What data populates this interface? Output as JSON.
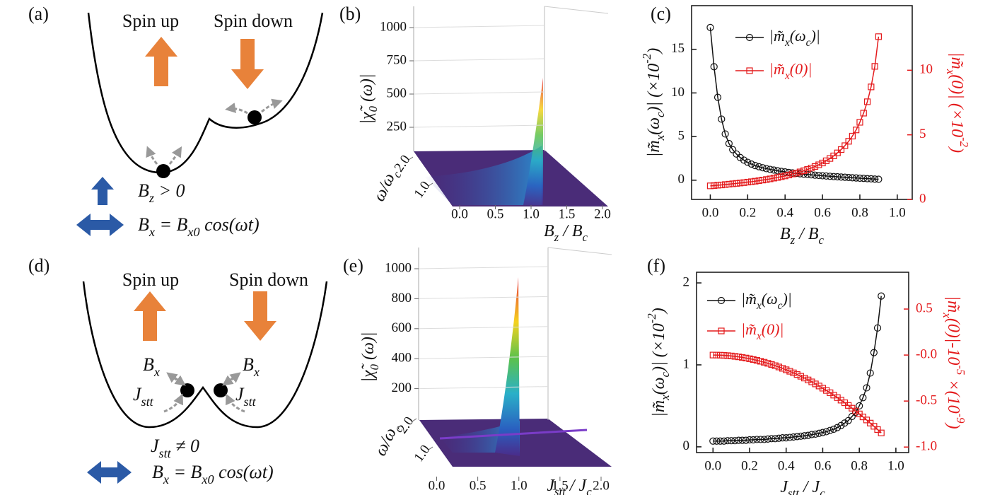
{
  "panels": {
    "a": {
      "label": "(a)",
      "spin_up": "Spin up",
      "spin_down": "Spin down",
      "field_z": [
        {
          "text": "B"
        },
        {
          "text": "z",
          "shift": "sub"
        },
        {
          "text": " > 0"
        }
      ],
      "field_x": [
        {
          "text": "B"
        },
        {
          "text": "x",
          "shift": "sub"
        },
        {
          "text": " = B"
        },
        {
          "text": "x0",
          "shift": "sub"
        },
        {
          "text": " cos(ωt)"
        }
      ]
    },
    "b": {
      "label": "(b)",
      "zlabel": [
        {
          "text": "|χ̃"
        },
        {
          "text": "0",
          "shift": "sub"
        },
        {
          "text": " (ω)|"
        }
      ],
      "ylabel": [
        {
          "text": "ω/ω"
        },
        {
          "text": "c",
          "shift": "sub"
        }
      ],
      "xlabel": [
        {
          "text": "B"
        },
        {
          "text": "z",
          "shift": "sub"
        },
        {
          "text": " / B"
        },
        {
          "text": "c",
          "shift": "sub"
        }
      ],
      "zlim": [
        0,
        1000
      ],
      "zticks": [
        250,
        500,
        750,
        1000
      ],
      "xlim": [
        0,
        2
      ],
      "xticks": [
        {
          "value": 0,
          "label": "0.0"
        },
        0.5,
        {
          "value": 1,
          "label": "1.0"
        },
        1.5,
        {
          "value": 2,
          "label": "2.0"
        }
      ],
      "ylim": [
        0,
        2
      ],
      "yticks": [
        {
          "value": 1,
          "label": "1.0"
        },
        {
          "value": 2,
          "label": "2.0"
        }
      ]
    },
    "d": {
      "label": "(d)",
      "spin_up": "Spin up",
      "spin_down": "Spin down",
      "bx_left": [
        {
          "text": "B"
        },
        {
          "text": "x",
          "shift": "sub"
        }
      ],
      "bx_right": [
        {
          "text": "B"
        },
        {
          "text": "x",
          "shift": "sub"
        }
      ],
      "jstt_left": [
        {
          "text": "J"
        },
        {
          "text": "stt",
          "shift": "sub"
        }
      ],
      "jstt_right": [
        {
          "text": "J"
        },
        {
          "text": "stt",
          "shift": "sub"
        }
      ],
      "condition": [
        {
          "text": "J"
        },
        {
          "text": "stt",
          "shift": "sub"
        },
        {
          "text": " ≠ 0"
        }
      ],
      "field_x": [
        {
          "text": "B"
        },
        {
          "text": "x",
          "shift": "sub"
        },
        {
          "text": " = B"
        },
        {
          "text": "x0",
          "shift": "sub"
        },
        {
          "text": " cos(ωt)"
        }
      ]
    },
    "e": {
      "label": "(e)",
      "zlabel": [
        {
          "text": "|χ̃"
        },
        {
          "text": "0",
          "shift": "sub"
        },
        {
          "text": " (ω)|"
        }
      ],
      "ylabel": [
        {
          "text": "ω/ω"
        },
        {
          "text": "c",
          "shift": "sub"
        }
      ],
      "xlabel": [
        {
          "text": "J"
        },
        {
          "text": "stt",
          "shift": "sub"
        },
        {
          "text": " / J"
        },
        {
          "text": "c",
          "shift": "sub"
        }
      ],
      "zlim": [
        0,
        1000
      ],
      "zticks": [
        200,
        400,
        600,
        800,
        1000
      ],
      "xlim": [
        0,
        2
      ],
      "xticks": [
        {
          "value": 0,
          "label": "0.0"
        },
        0.5,
        {
          "value": 1,
          "label": "1.0"
        },
        1.5,
        {
          "value": 2,
          "label": "2.0"
        }
      ],
      "ylim": [
        0,
        2
      ],
      "yticks": [
        {
          "value": 1,
          "label": "1.0"
        },
        {
          "value": 2,
          "label": "2.0"
        }
      ]
    }
  },
  "chart_data": [
    {
      "type": "line",
      "label": "(c)",
      "x": [
        0,
        0.02,
        0.04,
        0.06,
        0.08,
        0.1,
        0.12,
        0.14,
        0.16,
        0.18,
        0.2,
        0.22,
        0.24,
        0.26,
        0.28,
        0.3,
        0.32,
        0.34,
        0.36,
        0.38,
        0.4,
        0.42,
        0.44,
        0.46,
        0.48,
        0.5,
        0.52,
        0.54,
        0.56,
        0.58,
        0.6,
        0.62,
        0.64,
        0.66,
        0.68,
        0.7,
        0.72,
        0.74,
        0.76,
        0.78,
        0.8,
        0.82,
        0.84,
        0.86,
        0.88,
        0.9
      ],
      "xlim": [
        -0.1,
        1.08
      ],
      "xticks": [
        {
          "value": 0,
          "label": "0.0"
        },
        0.2,
        0.4,
        0.6,
        0.8,
        {
          "value": 1,
          "label": "1.0"
        }
      ],
      "ylim": [
        -2.2,
        20
      ],
      "yticks": [
        0,
        5,
        10,
        15
      ],
      "y2lim": [
        0,
        15
      ],
      "y2ticks": [
        0,
        5,
        10
      ],
      "xlabel": [
        {
          "text": "B"
        },
        {
          "text": "z",
          "shift": "sub"
        },
        {
          "text": " / B"
        },
        {
          "text": "c",
          "shift": "sub"
        }
      ],
      "ylabel": [
        {
          "text": "|m̃"
        },
        {
          "text": "x",
          "shift": "sub"
        },
        {
          "text": "(ω"
        },
        {
          "text": "c",
          "shift": "sub"
        },
        {
          "text": ")| (×10"
        },
        {
          "text": "-2",
          "shift": "super"
        },
        {
          "text": ")"
        }
      ],
      "y2label": [
        {
          "text": "|m̃"
        },
        {
          "text": "x",
          "shift": "sub"
        },
        {
          "text": "(0)| (×10"
        },
        {
          "text": "-2",
          "shift": "super"
        },
        {
          "text": ")"
        }
      ],
      "series": [
        {
          "name": [
            {
              "text": "|m̃"
            },
            {
              "text": "x",
              "shift": "sub"
            },
            {
              "text": "(ω"
            },
            {
              "text": "c",
              "shift": "sub"
            },
            {
              "text": ")|"
            }
          ],
          "color": "#111111",
          "marker": "circle",
          "values": [
            17.5,
            13,
            9.5,
            7,
            5.3,
            4.2,
            3.5,
            3.0,
            2.6,
            2.3,
            2.05,
            1.85,
            1.68,
            1.55,
            1.43,
            1.33,
            1.24,
            1.16,
            1.08,
            1.01,
            0.95,
            0.89,
            0.84,
            0.79,
            0.74,
            0.7,
            0.66,
            0.62,
            0.58,
            0.55,
            0.51,
            0.48,
            0.45,
            0.42,
            0.39,
            0.36,
            0.34,
            0.31,
            0.28,
            0.26,
            0.23,
            0.21,
            0.18,
            0.16,
            0.13,
            0.11
          ]
        },
        {
          "name": [
            {
              "text": "|m̃"
            },
            {
              "text": "x",
              "shift": "sub"
            },
            {
              "text": "(0)|"
            }
          ],
          "color": "#e41a1c",
          "marker": "square",
          "axis": "y2",
          "values": [
            1.05,
            1.07,
            1.1,
            1.12,
            1.15,
            1.18,
            1.21,
            1.24,
            1.27,
            1.3,
            1.34,
            1.37,
            1.41,
            1.45,
            1.5,
            1.54,
            1.59,
            1.65,
            1.7,
            1.76,
            1.82,
            1.89,
            1.97,
            2.04,
            2.13,
            2.22,
            2.32,
            2.43,
            2.55,
            2.68,
            2.82,
            2.99,
            3.17,
            3.37,
            3.6,
            3.86,
            4.16,
            4.5,
            4.9,
            5.38,
            5.97,
            6.68,
            7.56,
            8.71,
            10.3,
            12.6
          ]
        }
      ]
    },
    {
      "type": "line",
      "label": "(f)",
      "x": [
        0,
        0.02,
        0.04,
        0.06,
        0.08,
        0.1,
        0.12,
        0.14,
        0.16,
        0.18,
        0.2,
        0.22,
        0.24,
        0.26,
        0.28,
        0.3,
        0.32,
        0.34,
        0.36,
        0.38,
        0.4,
        0.42,
        0.44,
        0.46,
        0.48,
        0.5,
        0.52,
        0.54,
        0.56,
        0.58,
        0.6,
        0.62,
        0.64,
        0.66,
        0.68,
        0.7,
        0.72,
        0.74,
        0.76,
        0.78,
        0.8,
        0.82,
        0.84,
        0.86,
        0.88,
        0.9,
        0.92
      ],
      "xlim": [
        -0.09,
        1.07
      ],
      "xticks": [
        {
          "value": 0,
          "label": "0.0"
        },
        0.2,
        0.4,
        0.6,
        0.8,
        {
          "value": 1,
          "label": "1.0"
        }
      ],
      "ylim": [
        -0.07,
        2.13
      ],
      "yticks": [
        0,
        1,
        2
      ],
      "y2lim": [
        -1.06,
        0.9
      ],
      "y2ticks": [
        0.5,
        {
          "value": 0,
          "label": "-0.0"
        },
        -0.5,
        {
          "value": -1,
          "label": "-1.0"
        }
      ],
      "xlabel": [
        {
          "text": "J"
        },
        {
          "text": "stt",
          "shift": "sub"
        },
        {
          "text": " / J"
        },
        {
          "text": "c",
          "shift": "sub"
        }
      ],
      "ylabel": [
        {
          "text": "|m̃"
        },
        {
          "text": "x",
          "shift": "sub"
        },
        {
          "text": "(ω"
        },
        {
          "text": "c",
          "shift": "sub"
        },
        {
          "text": ")| (×10"
        },
        {
          "text": "-2",
          "shift": "super"
        },
        {
          "text": ")"
        }
      ],
      "y2label": [
        {
          "text": "|m̃"
        },
        {
          "text": "x",
          "shift": "sub"
        },
        {
          "text": "(0)|-10"
        },
        {
          "text": "-5",
          "shift": "super"
        },
        {
          "text": " ×(10"
        },
        {
          "text": "-9",
          "shift": "super"
        },
        {
          "text": ")"
        }
      ],
      "series": [
        {
          "name": [
            {
              "text": "|m̃"
            },
            {
              "text": "x",
              "shift": "sub"
            },
            {
              "text": "(ω"
            },
            {
              "text": "c",
              "shift": "sub"
            },
            {
              "text": ")|"
            }
          ],
          "color": "#111111",
          "marker": "circle",
          "values": [
            0.07,
            0.07,
            0.07,
            0.07,
            0.075,
            0.075,
            0.075,
            0.08,
            0.08,
            0.08,
            0.085,
            0.085,
            0.09,
            0.09,
            0.09,
            0.095,
            0.1,
            0.1,
            0.105,
            0.11,
            0.11,
            0.115,
            0.12,
            0.125,
            0.13,
            0.135,
            0.14,
            0.15,
            0.155,
            0.165,
            0.175,
            0.185,
            0.2,
            0.215,
            0.235,
            0.26,
            0.29,
            0.32,
            0.37,
            0.42,
            0.5,
            0.6,
            0.72,
            0.9,
            1.15,
            1.45,
            1.84
          ]
        },
        {
          "name": [
            {
              "text": "|m̃"
            },
            {
              "text": "x",
              "shift": "sub"
            },
            {
              "text": "(0)|"
            }
          ],
          "color": "#e41a1c",
          "marker": "square",
          "axis": "y2",
          "values": [
            0,
            -0.0004,
            -0.0016,
            -0.0036,
            -0.0064,
            -0.01,
            -0.0144,
            -0.0196,
            -0.0256,
            -0.0324,
            -0.04,
            -0.0484,
            -0.0576,
            -0.0676,
            -0.0784,
            -0.09,
            -0.1024,
            -0.1156,
            -0.1296,
            -0.1444,
            -0.16,
            -0.1764,
            -0.1936,
            -0.2116,
            -0.2304,
            -0.25,
            -0.2704,
            -0.2916,
            -0.3136,
            -0.3364,
            -0.36,
            -0.3844,
            -0.4096,
            -0.4356,
            -0.4624,
            -0.49,
            -0.5184,
            -0.5476,
            -0.5776,
            -0.6084,
            -0.64,
            -0.6724,
            -0.7056,
            -0.7396,
            -0.7744,
            -0.81,
            -0.8464
          ]
        }
      ]
    }
  ]
}
